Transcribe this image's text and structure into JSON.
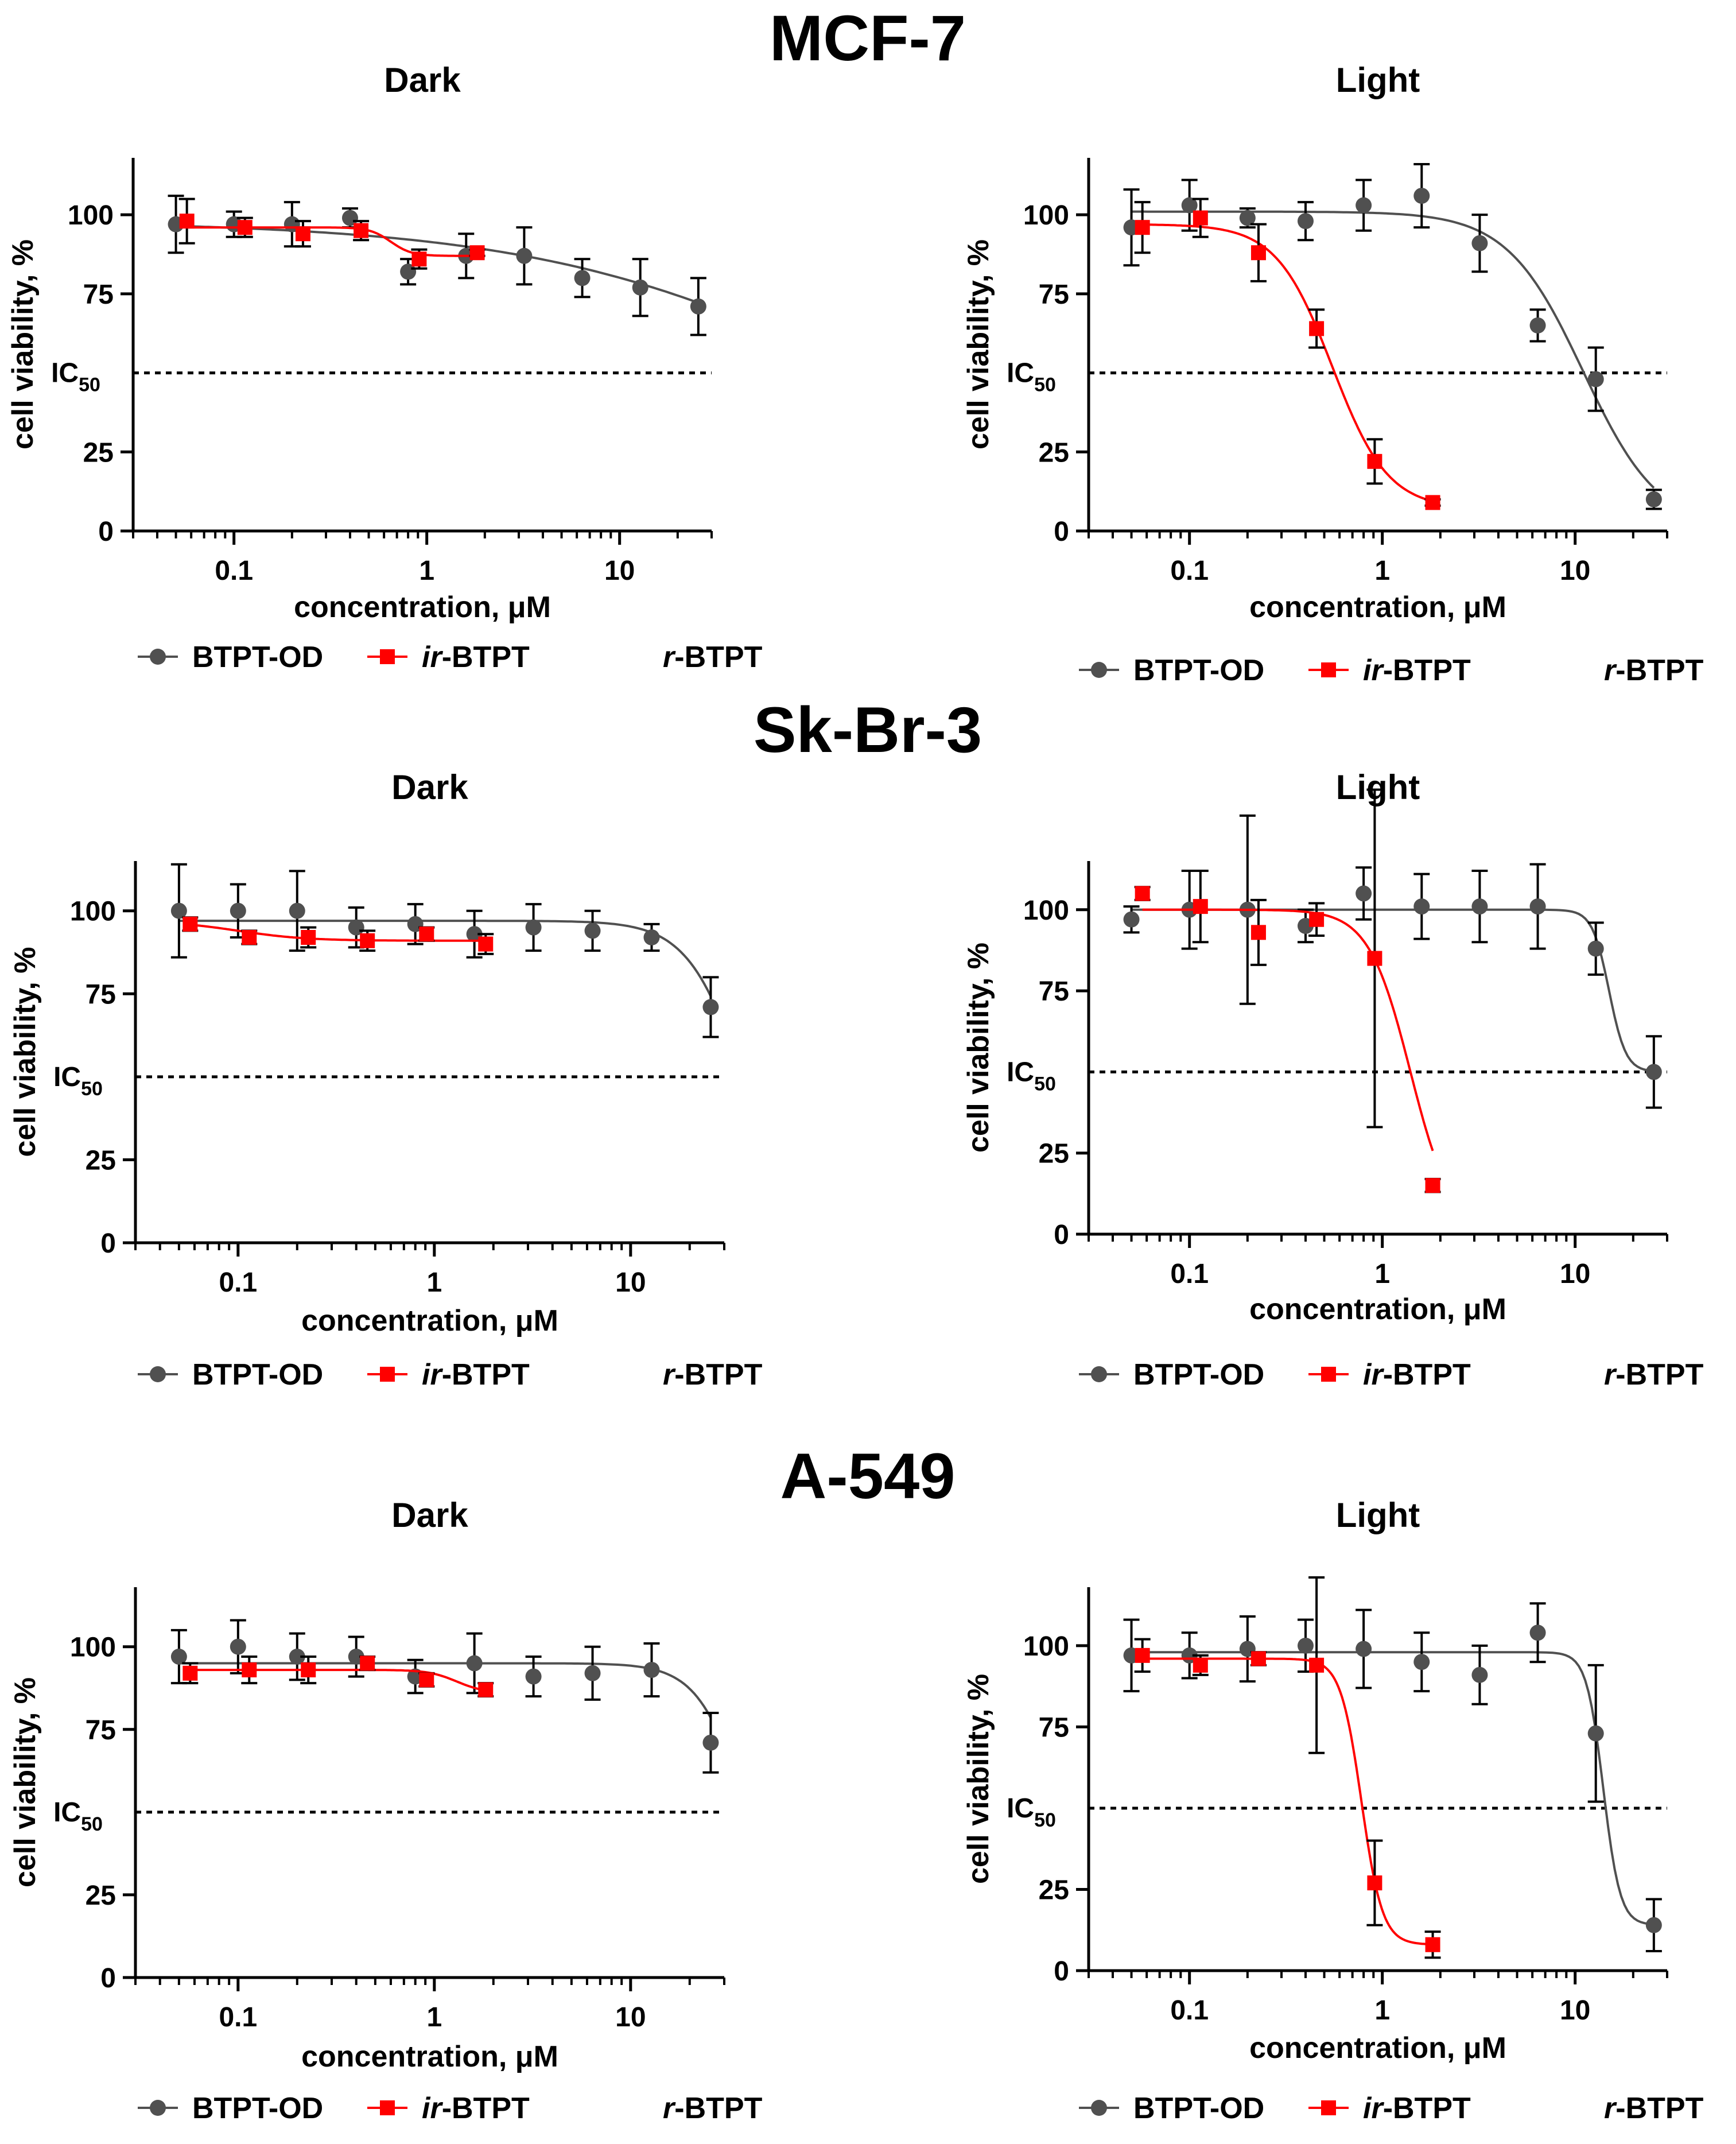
{
  "figure": {
    "cell_lines": [
      "MCF-7",
      "Sk-Br-3",
      "A-549"
    ]
  },
  "colors": {
    "btpt_od": "#505050",
    "ir_btpt": "#ff0000",
    "axis": "#000000"
  },
  "chart_data": [
    {
      "type": "scatter",
      "cell_line": "MCF-7",
      "title": "Dark",
      "xlabel": "concentration, μM",
      "ylabel": "cell viability, %",
      "xscale": "log",
      "xlim": [
        0.03,
        30
      ],
      "ylim": [
        0,
        118
      ],
      "xticks": [
        0.1,
        1,
        10
      ],
      "xtick_labels": [
        "0.1",
        "1",
        "10"
      ],
      "yticks": [
        0,
        25,
        75,
        100
      ],
      "ytick_labels": [
        "0",
        "25",
        "75",
        "100"
      ],
      "reference_line": {
        "y": 50,
        "label": "IC",
        "sub": "50"
      },
      "legend": [
        {
          "name": "BTPT-OD",
          "marker": "circle"
        },
        {
          "name_italic": "ir",
          "name_rest": "-BTPT",
          "marker": "square"
        },
        {
          "name_italic": "r",
          "name_rest": "-BTPT",
          "marker": "none"
        }
      ],
      "series": [
        {
          "name": "BTPT-OD",
          "x": [
            0.05,
            0.1,
            0.2,
            0.4,
            0.8,
            1.6,
            3.2,
            6.4,
            12.8,
            25.6
          ],
          "y": [
            97,
            97,
            97,
            99,
            82,
            87,
            87,
            80,
            77,
            71
          ],
          "err": [
            9,
            4,
            7,
            3,
            4,
            7,
            9,
            6,
            9,
            9
          ],
          "fit": {
            "top": 98,
            "bottom": 0,
            "ic50": 200,
            "hill": 0.5
          }
        },
        {
          "name": "ir-BTPT",
          "x": [
            0.057,
            0.114,
            0.228,
            0.456,
            0.913,
            1.826
          ],
          "y": [
            98,
            96,
            94,
            95,
            86,
            88
          ],
          "err": [
            7,
            3,
            4,
            3,
            3,
            1
          ],
          "fit": {
            "top": 96,
            "bottom": 87,
            "ic50": 0.65,
            "hill": 8
          }
        }
      ]
    },
    {
      "type": "scatter",
      "cell_line": "MCF-7",
      "title": "Light",
      "xlabel": "concentration, μM",
      "ylabel": "cell viability, %",
      "xscale": "log",
      "xlim": [
        0.03,
        30
      ],
      "ylim": [
        0,
        118
      ],
      "xticks": [
        0.1,
        1,
        10
      ],
      "xtick_labels": [
        "0.1",
        "1",
        "10"
      ],
      "yticks": [
        0,
        25,
        75,
        100
      ],
      "ytick_labels": [
        "0",
        "25",
        "75",
        "100"
      ],
      "reference_line": {
        "y": 50,
        "label": "IC",
        "sub": "50"
      },
      "legend": [
        {
          "name": "BTPT-OD",
          "marker": "circle"
        },
        {
          "name_italic": "ir",
          "name_rest": "-BTPT",
          "marker": "square"
        },
        {
          "name_italic": "r",
          "name_rest": "-BTPT",
          "marker": "none"
        }
      ],
      "series": [
        {
          "name": "BTPT-OD",
          "x": [
            0.05,
            0.1,
            0.2,
            0.4,
            0.8,
            1.6,
            3.2,
            6.4,
            12.8,
            25.6
          ],
          "y": [
            96,
            103,
            99,
            98,
            103,
            106,
            91,
            65,
            48,
            10
          ],
          "err": [
            12,
            8,
            3,
            6,
            8,
            10,
            9,
            5,
            10,
            3
          ],
          "fit": {
            "top": 101,
            "bottom": 0,
            "ic50": 11,
            "hill": 2.2
          }
        },
        {
          "name": "ir-BTPT",
          "x": [
            0.057,
            0.114,
            0.228,
            0.456,
            0.913,
            1.826
          ],
          "y": [
            96,
            99,
            88,
            64,
            22,
            9
          ],
          "err": [
            8,
            6,
            9,
            6,
            7,
            1
          ],
          "fit": {
            "top": 97,
            "bottom": 7,
            "ic50": 0.55,
            "hill": 3.0
          }
        }
      ]
    },
    {
      "type": "scatter",
      "cell_line": "Sk-Br-3",
      "title": "Dark",
      "xlabel": "concentration, μM",
      "ylabel": "cell viability, %",
      "xscale": "log",
      "xlim": [
        0.03,
        30
      ],
      "ylim": [
        0,
        115
      ],
      "xticks": [
        0.1,
        1,
        10
      ],
      "xtick_labels": [
        "0.1",
        "1",
        "10"
      ],
      "yticks": [
        0,
        25,
        75,
        100
      ],
      "ytick_labels": [
        "0",
        "25",
        "75",
        "100"
      ],
      "reference_line": {
        "y": 50,
        "label": "IC",
        "sub": "50"
      },
      "legend": [
        {
          "name": "BTPT-OD",
          "marker": "circle"
        },
        {
          "name_italic": "ir",
          "name_rest": "-BTPT",
          "marker": "square"
        },
        {
          "name_italic": "r",
          "name_rest": "-BTPT",
          "marker": "none"
        }
      ],
      "series": [
        {
          "name": "BTPT-OD",
          "x": [
            0.05,
            0.1,
            0.2,
            0.4,
            0.8,
            1.6,
            3.2,
            6.4,
            12.8,
            25.6
          ],
          "y": [
            100,
            100,
            100,
            95,
            96,
            93,
            95,
            94,
            92,
            71
          ],
          "err": [
            14,
            8,
            12,
            6,
            6,
            7,
            7,
            6,
            4,
            9
          ],
          "fit": {
            "top": 97,
            "bottom": 0,
            "ic50": 38,
            "hill": 3.0
          }
        },
        {
          "name": "ir-BTPT",
          "x": [
            0.057,
            0.114,
            0.228,
            0.456,
            0.913,
            1.826
          ],
          "y": [
            96,
            92,
            92,
            91,
            93,
            90
          ],
          "err": [
            2,
            2,
            3,
            3,
            2,
            3
          ],
          "fit": {
            "top": 97,
            "bottom": 91,
            "ic50": 0.1,
            "hill": 2.5
          }
        }
      ]
    },
    {
      "type": "scatter",
      "cell_line": "Sk-Br-3",
      "title": "Light",
      "xlabel": "concentration, μM",
      "ylabel": "cell viability, %",
      "xscale": "log",
      "xlim": [
        0.03,
        30
      ],
      "ylim": [
        0,
        115
      ],
      "xticks": [
        0.1,
        1,
        10
      ],
      "xtick_labels": [
        "0.1",
        "1",
        "10"
      ],
      "yticks": [
        0,
        25,
        75,
        100
      ],
      "ytick_labels": [
        "0",
        "25",
        "75",
        "100"
      ],
      "reference_line": {
        "y": 50,
        "label": "IC",
        "sub": "50"
      },
      "legend": [
        {
          "name": "BTPT-OD",
          "marker": "circle"
        },
        {
          "name_italic": "ir",
          "name_rest": "-BTPT",
          "marker": "square"
        },
        {
          "name_italic": "r",
          "name_rest": "-BTPT",
          "marker": "none"
        }
      ],
      "series": [
        {
          "name": "BTPT-OD",
          "x": [
            0.05,
            0.1,
            0.2,
            0.4,
            0.8,
            1.6,
            3.2,
            6.4,
            12.8,
            25.6
          ],
          "y": [
            97,
            100,
            100,
            95,
            105,
            101,
            101,
            101,
            88,
            50
          ],
          "err": [
            4,
            12,
            29,
            5,
            8,
            10,
            11,
            13,
            8,
            11
          ],
          "fit": {
            "top": 100,
            "bottom": 50,
            "ic50": 15,
            "hill": 10
          }
        },
        {
          "name": "ir-BTPT",
          "x": [
            0.057,
            0.114,
            0.228,
            0.456,
            0.913,
            1.826
          ],
          "y": [
            105,
            101,
            93,
            97,
            85,
            15
          ],
          "err": [
            2,
            11,
            10,
            5,
            52,
            2
          ],
          "fit": {
            "top": 100,
            "bottom": 0,
            "ic50": 1.4,
            "hill": 4.0
          }
        }
      ]
    },
    {
      "type": "scatter",
      "cell_line": "A-549",
      "title": "Dark",
      "xlabel": "concentration, μM",
      "ylabel": "cell viability, %",
      "xscale": "log",
      "xlim": [
        0.03,
        30
      ],
      "ylim": [
        0,
        118
      ],
      "xticks": [
        0.1,
        1,
        10
      ],
      "xtick_labels": [
        "0.1",
        "1",
        "10"
      ],
      "yticks": [
        0,
        25,
        75,
        100
      ],
      "ytick_labels": [
        "0",
        "25",
        "75",
        "100"
      ],
      "reference_line": {
        "y": 50,
        "label": "IC",
        "sub": "50"
      },
      "legend": [
        {
          "name": "BTPT-OD",
          "marker": "circle"
        },
        {
          "name_italic": "ir",
          "name_rest": "-BTPT",
          "marker": "square"
        },
        {
          "name_italic": "r",
          "name_rest": "-BTPT",
          "marker": "none"
        }
      ],
      "series": [
        {
          "name": "BTPT-OD",
          "x": [
            0.05,
            0.1,
            0.2,
            0.4,
            0.8,
            1.6,
            3.2,
            6.4,
            12.8,
            25.6
          ],
          "y": [
            97,
            100,
            97,
            97,
            91,
            95,
            91,
            92,
            93,
            71
          ],
          "err": [
            8,
            8,
            7,
            6,
            5,
            9,
            6,
            8,
            8,
            9
          ],
          "fit": {
            "top": 95,
            "bottom": 0,
            "ic50": 40,
            "hill": 3.5
          }
        },
        {
          "name": "ir-BTPT",
          "x": [
            0.057,
            0.114,
            0.228,
            0.456,
            0.913,
            1.826
          ],
          "y": [
            92,
            93,
            93,
            95,
            90,
            87
          ],
          "err": [
            3,
            4,
            4,
            2,
            2,
            2
          ],
          "fit": {
            "top": 93,
            "bottom": 86,
            "ic50": 1.3,
            "hill": 6
          }
        }
      ]
    },
    {
      "type": "scatter",
      "cell_line": "A-549",
      "title": "Light",
      "xlabel": "concentration, μM",
      "ylabel": "cell viability, %",
      "xscale": "log",
      "xlim": [
        0.03,
        30
      ],
      "ylim": [
        0,
        118
      ],
      "xticks": [
        0.1,
        1,
        10
      ],
      "xtick_labels": [
        "0.1",
        "1",
        "10"
      ],
      "yticks": [
        0,
        25,
        75,
        100
      ],
      "ytick_labels": [
        "0",
        "25",
        "75",
        "100"
      ],
      "reference_line": {
        "y": 50,
        "label": "IC",
        "sub": "50"
      },
      "legend": [
        {
          "name": "BTPT-OD",
          "marker": "circle"
        },
        {
          "name_italic": "ir",
          "name_rest": "-BTPT",
          "marker": "square"
        },
        {
          "name_italic": "r",
          "name_rest": "-BTPT",
          "marker": "none"
        }
      ],
      "series": [
        {
          "name": "BTPT-OD",
          "x": [
            0.05,
            0.1,
            0.2,
            0.4,
            0.8,
            1.6,
            3.2,
            6.4,
            12.8,
            25.6
          ],
          "y": [
            97,
            97,
            99,
            100,
            99,
            95,
            91,
            104,
            73,
            14
          ],
          "err": [
            11,
            7,
            10,
            8,
            12,
            9,
            9,
            9,
            21,
            8
          ],
          "fit": {
            "top": 98,
            "bottom": 14,
            "ic50": 14,
            "hill": 10
          }
        },
        {
          "name": "ir-BTPT",
          "x": [
            0.057,
            0.114,
            0.228,
            0.456,
            0.913,
            1.826
          ],
          "y": [
            97,
            94,
            96,
            94,
            27,
            8
          ],
          "err": [
            5,
            3,
            2,
            27,
            13,
            4
          ],
          "fit": {
            "top": 96,
            "bottom": 8,
            "ic50": 0.78,
            "hill": 8
          }
        }
      ]
    }
  ]
}
